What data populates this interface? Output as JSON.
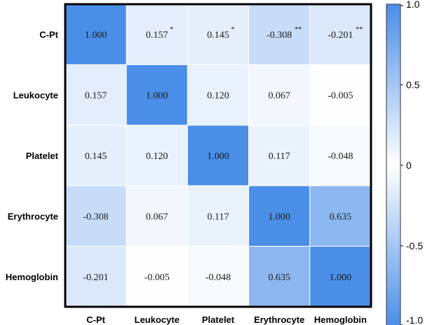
{
  "chart_data": {
    "type": "heatmap",
    "rows": [
      "C-Pt",
      "Leukocyte",
      "Platelet",
      "Erythrocyte",
      "Hemoglobin"
    ],
    "columns": [
      "C-Pt",
      "Leukocyte",
      "Platelet",
      "Erythrocyte",
      "Hemoglobin"
    ],
    "values": [
      [
        1.0,
        0.157,
        0.145,
        -0.308,
        -0.201
      ],
      [
        0.157,
        1.0,
        0.12,
        0.067,
        -0.005
      ],
      [
        0.145,
        0.12,
        1.0,
        0.117,
        -0.048
      ],
      [
        -0.308,
        0.067,
        0.117,
        1.0,
        0.635
      ],
      [
        -0.201,
        -0.005,
        -0.048,
        0.635,
        1.0
      ]
    ],
    "labels": [
      [
        "1.000",
        "0.157",
        "0.145",
        "-0.308",
        "-0.201"
      ],
      [
        "0.157",
        "1.000",
        "0.120",
        "0.067",
        "-0.005"
      ],
      [
        "0.145",
        "0.120",
        "1.000",
        "0.117",
        "-0.048"
      ],
      [
        "-0.308",
        "0.067",
        "0.117",
        "1.000",
        "0.635"
      ],
      [
        "-0.201",
        "-0.005",
        "-0.048",
        "0.635",
        "1.000"
      ]
    ],
    "significance": [
      [
        "",
        "*",
        "*",
        "**",
        "**"
      ],
      [
        "",
        "",
        "",
        "",
        ""
      ],
      [
        "",
        "",
        "",
        "",
        ""
      ],
      [
        "",
        "",
        "",
        "",
        ""
      ],
      [
        "",
        "",
        "",
        "",
        ""
      ]
    ],
    "colorbar": {
      "range": [
        -1.0,
        1.0
      ],
      "ticks": [
        "1.0",
        "0.5",
        "0",
        "-0.5",
        "-1.0"
      ],
      "tick_values": [
        1.0,
        0.5,
        0,
        -0.5,
        -1.0
      ],
      "color": "#4a8ee8"
    },
    "title": "",
    "xlabel": "",
    "ylabel": ""
  }
}
